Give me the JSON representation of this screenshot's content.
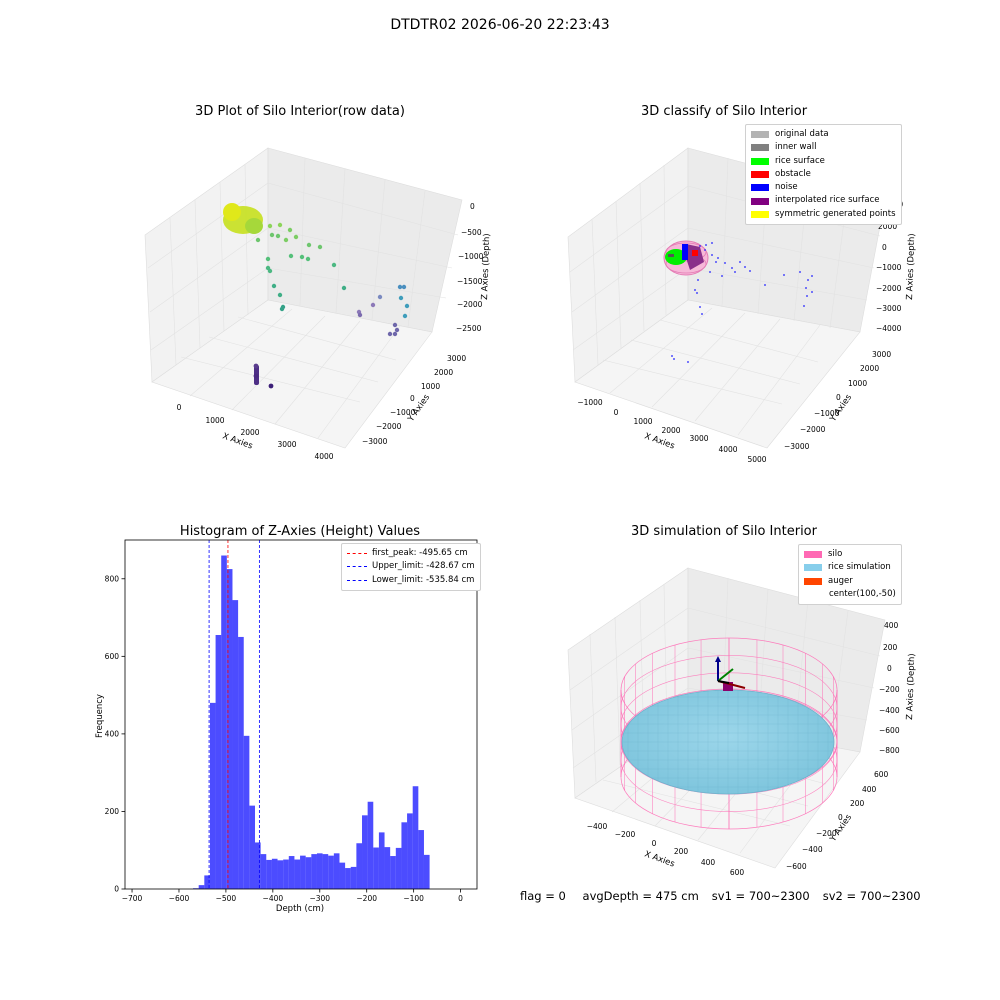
{
  "suptitle": "DTDTR02 2026-06-20 22:23:43",
  "panel_raw": {
    "title": "3D Plot of Silo Interior(row data)",
    "xlabel": "X Axies",
    "ylabel": "Y Axies",
    "zlabel": "Z Axies (Depth)",
    "xticks": [
      "0",
      "1000",
      "2000",
      "3000",
      "4000"
    ],
    "yticks": [
      "3000",
      "2000",
      "1000",
      "0",
      "−1000",
      "−2000",
      "−3000"
    ],
    "zticks": [
      "0",
      "−500",
      "−1000",
      "−1500",
      "−2000",
      "−2500"
    ]
  },
  "panel_classify": {
    "title": "3D classify of Silo Interior",
    "xlabel": "X Axies",
    "ylabel": "Y Axies",
    "zlabel": "Z Axies (Depth)",
    "xticks": [
      "−1000",
      "0",
      "1000",
      "2000",
      "3000",
      "4000",
      "5000"
    ],
    "yticks": [
      "3000",
      "2000",
      "1000",
      "0",
      "−1000",
      "−2000",
      "−3000"
    ],
    "zticks": [
      "2000",
      "0",
      "−1000",
      "−2000",
      "−3000",
      "−4000"
    ],
    "zticks_top": "1000",
    "legend": [
      {
        "label": "original data",
        "color": "#b3b3b3"
      },
      {
        "label": "inner wall",
        "color": "#808080"
      },
      {
        "label": "rice surface",
        "color": "#00ff00"
      },
      {
        "label": "obstacle",
        "color": "#ff0000"
      },
      {
        "label": "noise",
        "color": "#0000ff"
      },
      {
        "label": "interpolated rice surface",
        "color": "#800080"
      },
      {
        "label": "symmetric generated points",
        "color": "#ffff00"
      }
    ]
  },
  "panel_sim": {
    "title": "3D simulation of Silo Interior",
    "xlabel": "X Axies",
    "ylabel": "Y Axies",
    "zlabel": "Z Axies (Depth)",
    "xticks": [
      "−400",
      "−200",
      "0",
      "200",
      "400",
      "600"
    ],
    "yticks": [
      "600",
      "400",
      "200",
      "0",
      "−200",
      "−400",
      "−600"
    ],
    "zticks": [
      "400",
      "200",
      "0",
      "−200",
      "−400",
      "−600",
      "−800"
    ],
    "legend": [
      {
        "label": "silo",
        "color": "#ff69b4"
      },
      {
        "label": "rice simulation",
        "color": "#87ceeb"
      },
      {
        "label": "auger",
        "color": "#ff4500"
      },
      {
        "label": "center(100,-50)",
        "color": ""
      }
    ]
  },
  "footer": {
    "flag": "flag = 0",
    "avg_depth": "avgDepth = 475 cm",
    "sv1": "sv1 = 700~2300",
    "sv2": "sv2 = 700~2300"
  },
  "chart_data": [
    {
      "type": "scatter",
      "title": "3D Plot of Silo Interior(row data)",
      "xlabel": "X Axies",
      "ylabel": "Y Axies",
      "zlabel": "Z Axies (Depth)",
      "xlim": [
        -500,
        4500
      ],
      "ylim": [
        -3500,
        3500
      ],
      "zlim": [
        -2800,
        100
      ]
    },
    {
      "type": "scatter",
      "title": "3D classify of Silo Interior",
      "xlabel": "X Axies",
      "ylabel": "Y Axies",
      "zlabel": "Z Axies (Depth)",
      "series": [
        {
          "name": "original data"
        },
        {
          "name": "inner wall"
        },
        {
          "name": "rice surface"
        },
        {
          "name": "obstacle"
        },
        {
          "name": "noise"
        },
        {
          "name": "interpolated rice surface"
        },
        {
          "name": "symmetric generated points"
        }
      ]
    },
    {
      "type": "bar",
      "title": "Histogram of Z-Axies (Height) Values",
      "xlabel": "Depth (cm)",
      "ylabel": "Frequency",
      "xlim": [
        -700,
        0
      ],
      "ylim": [
        0,
        900
      ],
      "xticks": [
        -700,
        -600,
        -500,
        -400,
        -300,
        -200,
        -100,
        0
      ],
      "yticks": [
        0,
        200,
        400,
        600,
        800
      ],
      "bar_color": "#0000ff",
      "bin_start": -570,
      "bin_width": 12,
      "values": [
        2,
        10,
        35,
        480,
        655,
        860,
        825,
        745,
        650,
        395,
        215,
        120,
        90,
        75,
        78,
        74,
        76,
        85,
        76,
        86,
        82,
        90,
        92,
        90,
        86,
        92,
        68,
        54,
        57,
        118,
        190,
        225,
        107,
        146,
        108,
        85,
        106,
        172,
        195,
        265,
        152,
        88
      ],
      "vlines": [
        {
          "label": "first_peak: -495.65 cm",
          "x": -495.65,
          "color": "#ff0000"
        },
        {
          "label": "Upper_limit: -428.67 cm",
          "x": -428.67,
          "color": "#0000ff"
        },
        {
          "label": "Lower_limit: -535.84 cm",
          "x": -535.84,
          "color": "#0000ff"
        }
      ]
    },
    {
      "type": "surface",
      "title": "3D simulation of Silo Interior",
      "xlabel": "X Axies",
      "ylabel": "Y Axies",
      "zlabel": "Z Axies (Depth)",
      "series": [
        {
          "name": "silo"
        },
        {
          "name": "rice simulation"
        },
        {
          "name": "auger"
        }
      ],
      "center": [
        100,
        -50
      ]
    }
  ]
}
